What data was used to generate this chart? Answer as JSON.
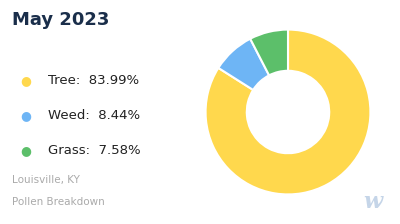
{
  "title": "May 2023",
  "subtitle_line1": "Louisville, KY",
  "subtitle_line2": "Pollen Breakdown",
  "categories": [
    "Tree",
    "Weed",
    "Grass"
  ],
  "values": [
    83.99,
    8.44,
    7.58
  ],
  "percentages": [
    "83.99%",
    "8.44%",
    "7.58%"
  ],
  "colors": [
    "#FFD84D",
    "#6EB5F5",
    "#5CBF6A"
  ],
  "background_color": "#ffffff",
  "title_color": "#1a2e4a",
  "legend_text_color": "#222222",
  "subtitle_color": "#aaaaaa",
  "watermark_color": "#c5d5e8"
}
